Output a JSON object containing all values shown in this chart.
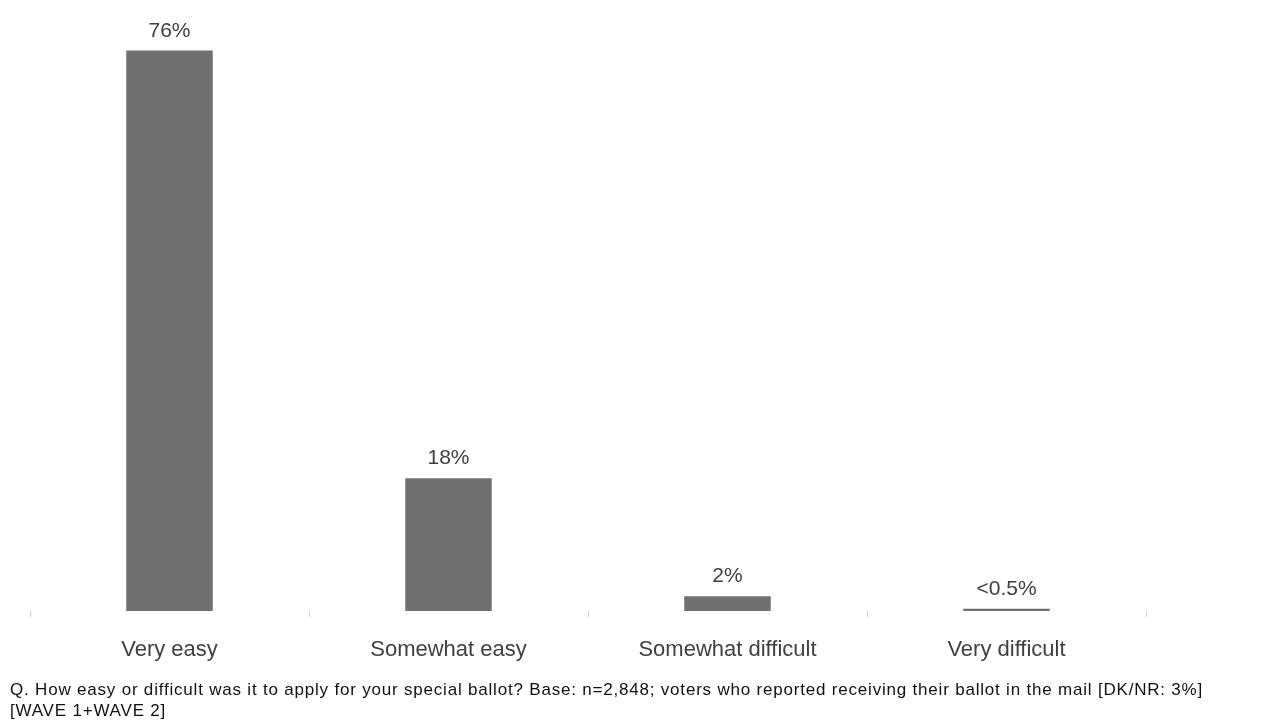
{
  "chart_data": {
    "type": "bar",
    "categories": [
      "Very easy",
      "Somewhat easy",
      "Somewhat difficult",
      "Very difficult"
    ],
    "values": [
      76,
      18,
      2,
      0.3
    ],
    "color": "#707070",
    "value_labels": [
      "76%",
      "18%",
      "2%",
      "<0.5%"
    ],
    "tick_labels": "x",
    "annotations": [
      "Q. How easy or difficult was it to apply for your special ballot? Base: n=2,848; voters who reported receiving their ballot in the mail [DK/NR: 3%] [WAVE 1+WAVE 2]"
    ]
  }
}
